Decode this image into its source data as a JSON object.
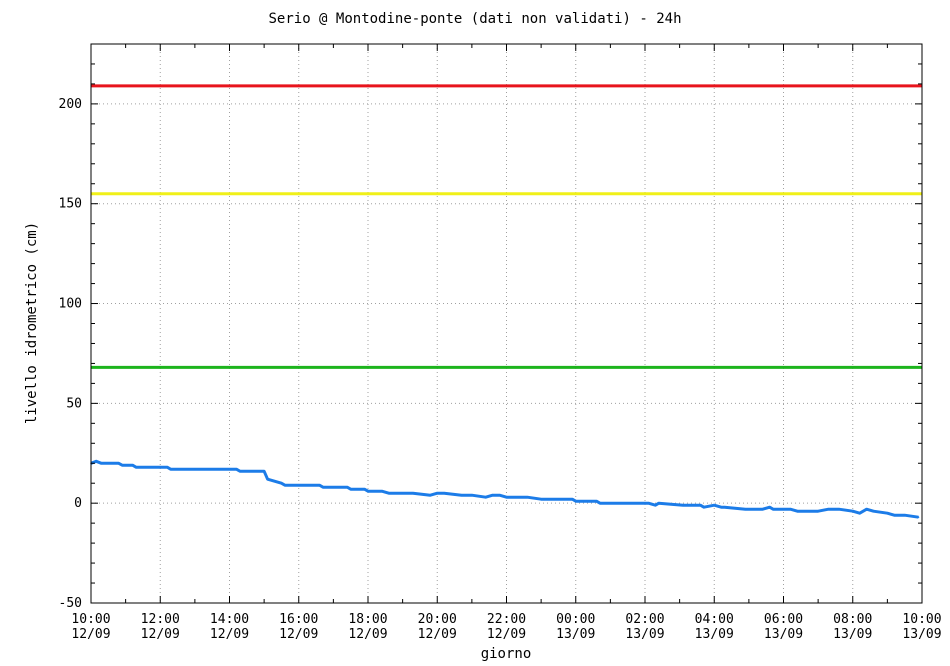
{
  "chart_data": {
    "type": "line",
    "title": "Serio @ Montodine-ponte (dati non validati) - 24h",
    "xlabel": "giorno",
    "ylabel": "livello idrometrico (cm)",
    "ylim": [
      -50,
      230
    ],
    "yticks": [
      -50,
      0,
      50,
      100,
      150,
      200
    ],
    "xticks": [
      {
        "hour": 0,
        "time": "10:00",
        "date": "12/09"
      },
      {
        "hour": 2,
        "time": "12:00",
        "date": "12/09"
      },
      {
        "hour": 4,
        "time": "14:00",
        "date": "12/09"
      },
      {
        "hour": 6,
        "time": "16:00",
        "date": "12/09"
      },
      {
        "hour": 8,
        "time": "18:00",
        "date": "12/09"
      },
      {
        "hour": 10,
        "time": "20:00",
        "date": "12/09"
      },
      {
        "hour": 12,
        "time": "22:00",
        "date": "12/09"
      },
      {
        "hour": 14,
        "time": "00:00",
        "date": "13/09"
      },
      {
        "hour": 16,
        "time": "02:00",
        "date": "13/09"
      },
      {
        "hour": 18,
        "time": "04:00",
        "date": "13/09"
      },
      {
        "hour": 20,
        "time": "06:00",
        "date": "13/09"
      },
      {
        "hour": 22,
        "time": "08:00",
        "date": "13/09"
      },
      {
        "hour": 24,
        "time": "10:00",
        "date": "13/09"
      }
    ],
    "xlim": [
      0,
      24
    ],
    "grid": true,
    "thresholds": [
      {
        "value": 209,
        "color": "#e8141c"
      },
      {
        "value": 155,
        "color": "#f0f018"
      },
      {
        "value": 68,
        "color": "#1cb41c"
      }
    ],
    "series": [
      {
        "color": "#1c7ce8",
        "x": [
          0.0,
          0.15,
          0.3,
          0.8,
          0.9,
          1.2,
          1.3,
          2.2,
          2.3,
          3.0,
          3.8,
          4.2,
          4.3,
          5.0,
          5.1,
          5.3,
          5.5,
          5.6,
          6.0,
          6.6,
          6.7,
          7.4,
          7.5,
          7.9,
          8.0,
          8.4,
          8.6,
          9.0,
          9.3,
          9.8,
          10.0,
          10.2,
          10.7,
          11.0,
          11.4,
          11.6,
          11.8,
          12.0,
          12.4,
          12.6,
          13.0,
          13.9,
          14.0,
          14.6,
          14.7,
          15.5,
          16.1,
          16.3,
          16.4,
          17.1,
          17.2,
          17.6,
          17.7,
          18.0,
          18.2,
          18.3,
          18.9,
          19.4,
          19.6,
          19.7,
          20.0,
          20.2,
          20.4,
          21.0,
          21.3,
          21.5,
          21.6,
          22.0,
          22.2,
          22.4,
          22.6,
          23.0,
          23.2,
          23.4,
          23.5,
          23.9
        ],
        "y": [
          20,
          21,
          20,
          20,
          19,
          19,
          18,
          18,
          17,
          17,
          17,
          17,
          16,
          16,
          12,
          11,
          10,
          9,
          9,
          9,
          8,
          8,
          7,
          7,
          6,
          6,
          5,
          5,
          5,
          4,
          5,
          5,
          4,
          4,
          3,
          4,
          4,
          3,
          3,
          3,
          2,
          2,
          1,
          1,
          0,
          0,
          0,
          -1,
          0,
          -1,
          -1,
          -1,
          -2,
          -1,
          -2,
          -2,
          -3,
          -3,
          -2,
          -3,
          -3,
          -3,
          -4,
          -4,
          -3,
          -3,
          -3,
          -4,
          -5,
          -3,
          -4,
          -5,
          -6,
          -6,
          -6,
          -7
        ]
      }
    ]
  }
}
